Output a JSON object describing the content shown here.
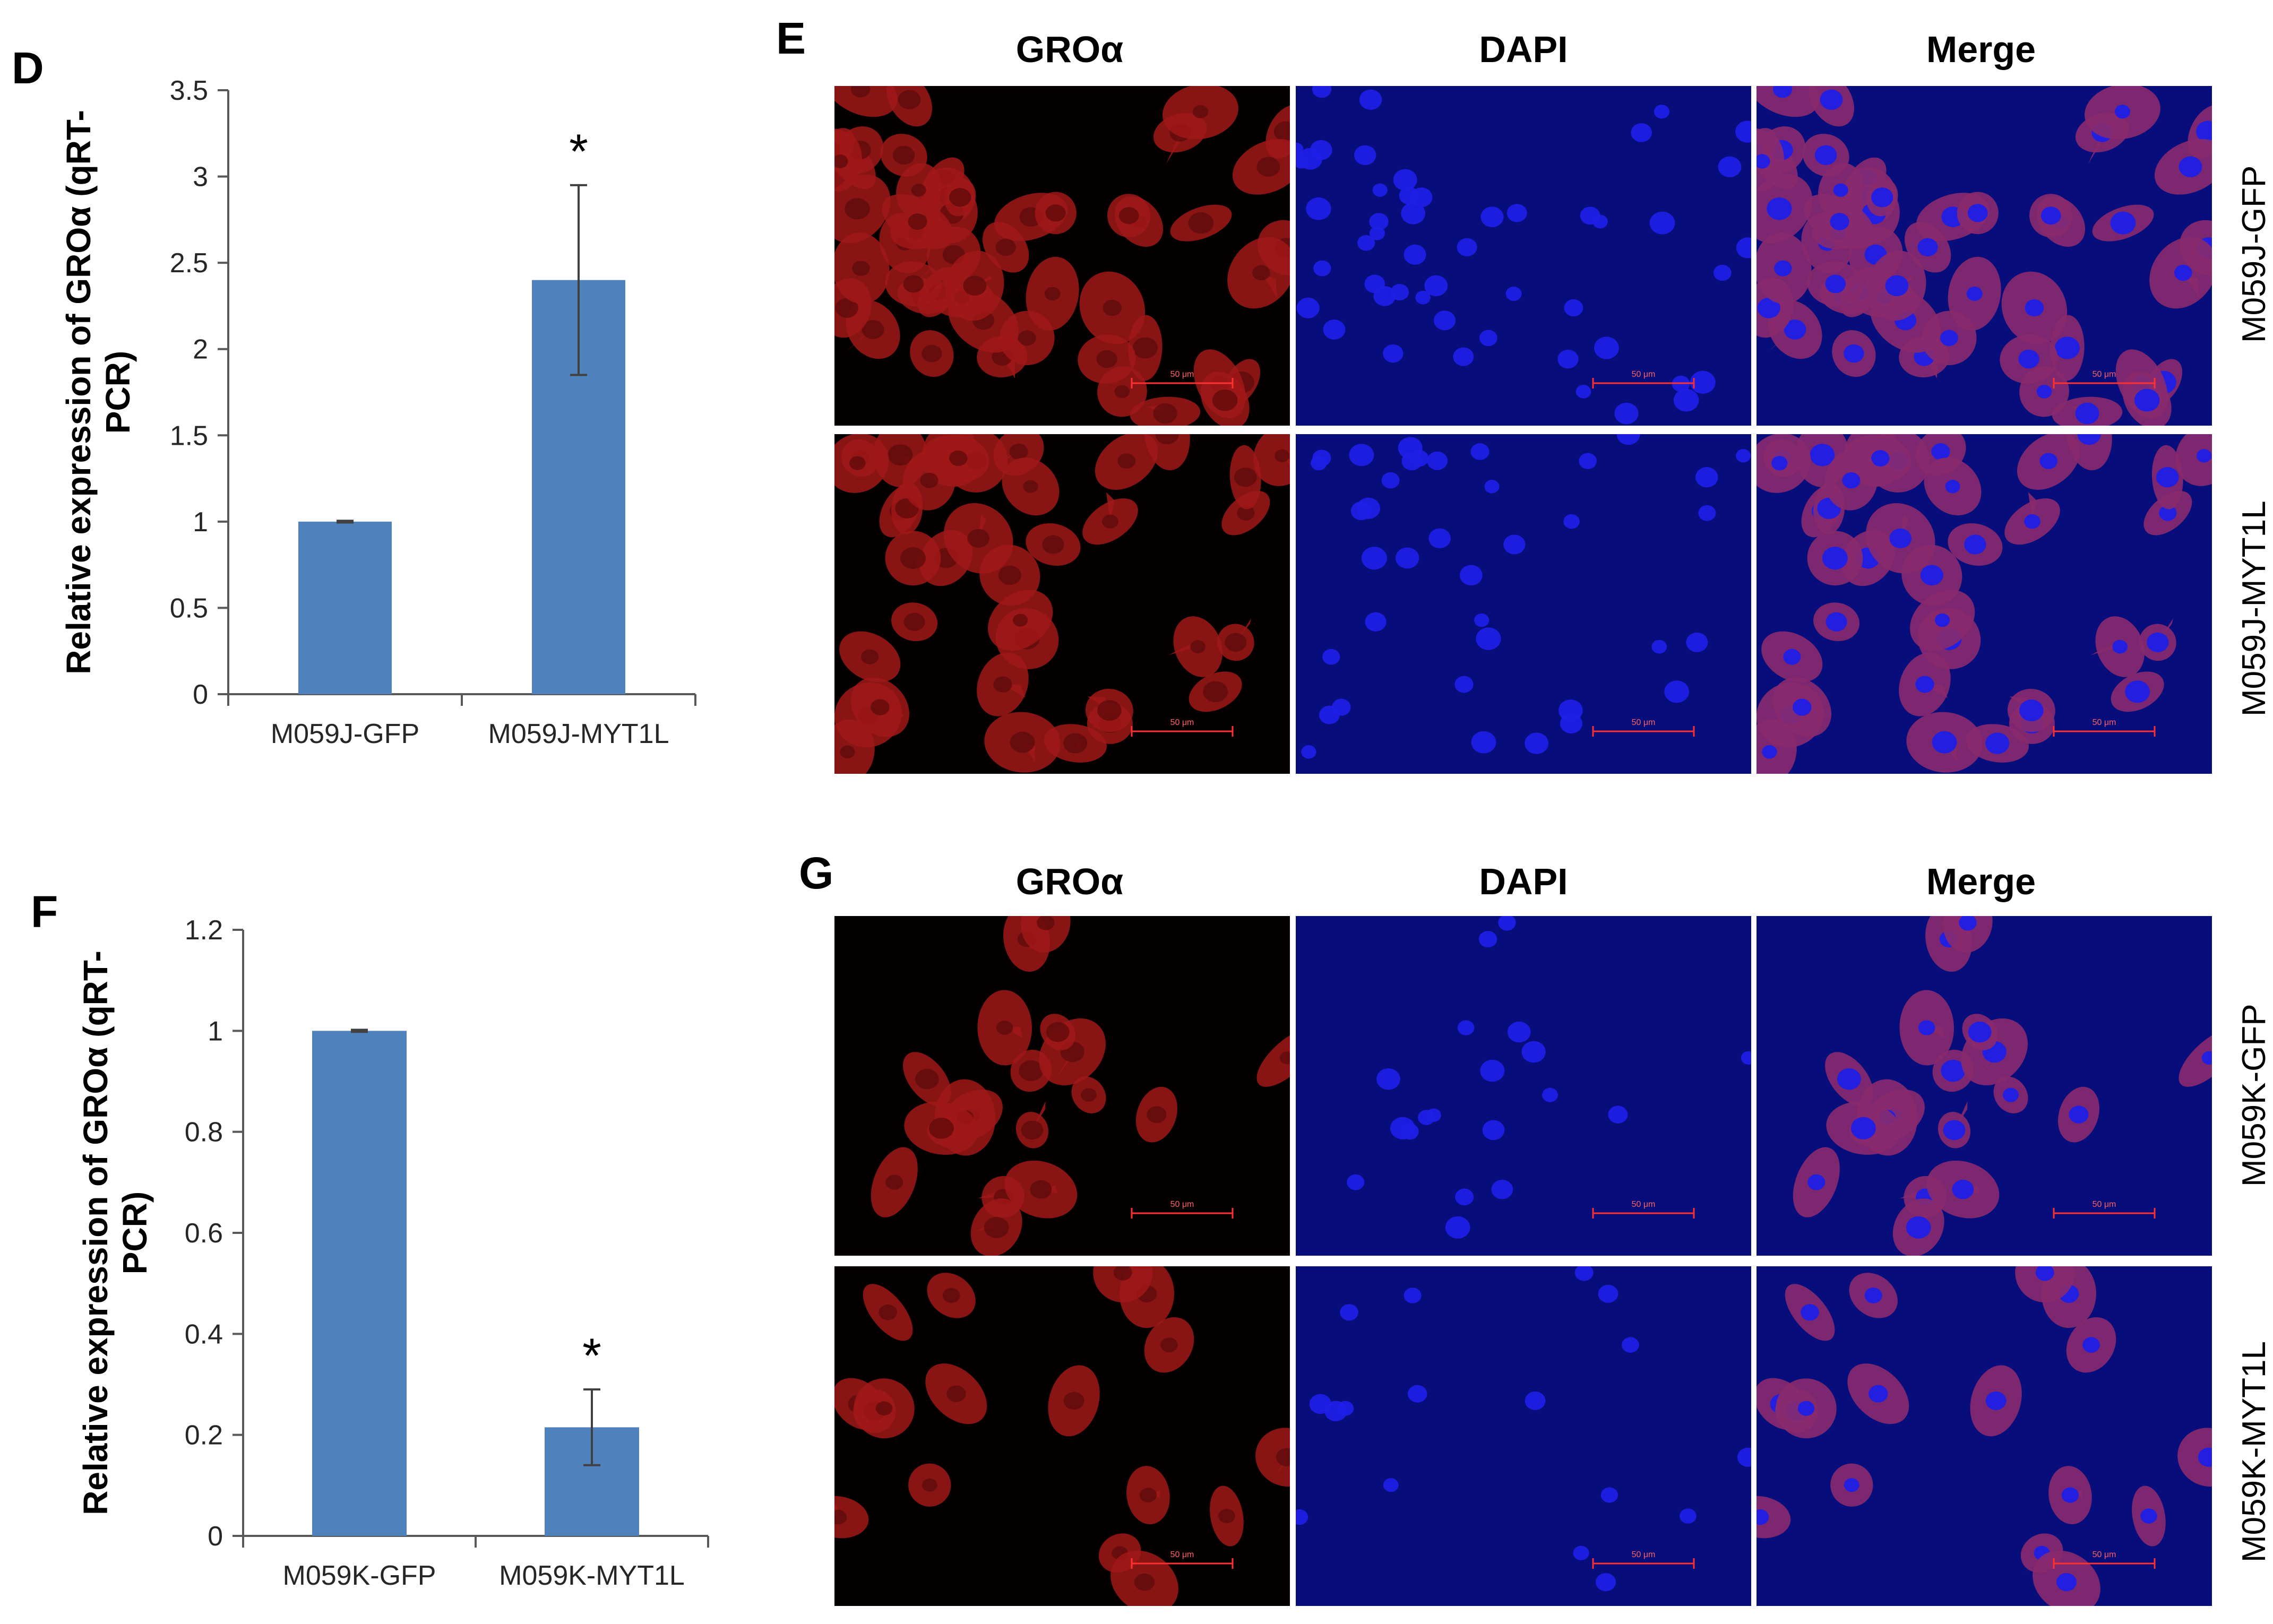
{
  "panel_letters": {
    "d": "D",
    "e": "E",
    "f": "F",
    "g": "G"
  },
  "colors": {
    "bar": "#4f81bd",
    "axis": "#595959",
    "red_stain": "#a01818",
    "blue_stain": "#1f1fe6",
    "blue_bg": "#070d7a"
  },
  "chart_data": [
    {
      "panel": "D",
      "type": "bar",
      "categories": [
        "M059J-GFP",
        "M059J-MYT1L"
      ],
      "values": [
        1.0,
        2.4
      ],
      "error": [
        0.005,
        0.55
      ],
      "significance": [
        "",
        "*"
      ],
      "ylabel": "Relative expression of GROα (qRT-PCR)",
      "ylabel_lines": [
        "Relative expression of GROα (qRT-",
        "PCR)"
      ],
      "ylim": [
        0,
        3.5
      ],
      "yticks": [
        "0",
        "0.5",
        "1",
        "1.5",
        "2",
        "2.5",
        "3",
        "3.5"
      ],
      "grid": false
    },
    {
      "panel": "F",
      "type": "bar",
      "categories": [
        "M059K-GFP",
        "M059K-MYT1L"
      ],
      "values": [
        1.0,
        0.215
      ],
      "error": [
        0.002,
        0.075
      ],
      "significance": [
        "",
        "*"
      ],
      "ylabel": "Relative expression of GROα (qRT-PCR)",
      "ylabel_lines": [
        "Relative expression of GROα (qRT-",
        "PCR)"
      ],
      "ylim": [
        0,
        1.2
      ],
      "yticks": [
        "0",
        "0.2",
        "0.4",
        "0.6",
        "0.8",
        "1",
        "1.2"
      ],
      "grid": false
    }
  ],
  "panel_e": {
    "columns": [
      "GROα",
      "DAPI",
      "Merge"
    ],
    "rows": [
      "M059J-GFP",
      "M059J-MYT1L"
    ],
    "scale_bar": "50 μm"
  },
  "panel_g": {
    "columns": [
      "GROα",
      "DAPI",
      "Merge"
    ],
    "rows": [
      "M059K-GFP",
      "M059K-MYT1L"
    ],
    "scale_bar": "50 μm"
  }
}
